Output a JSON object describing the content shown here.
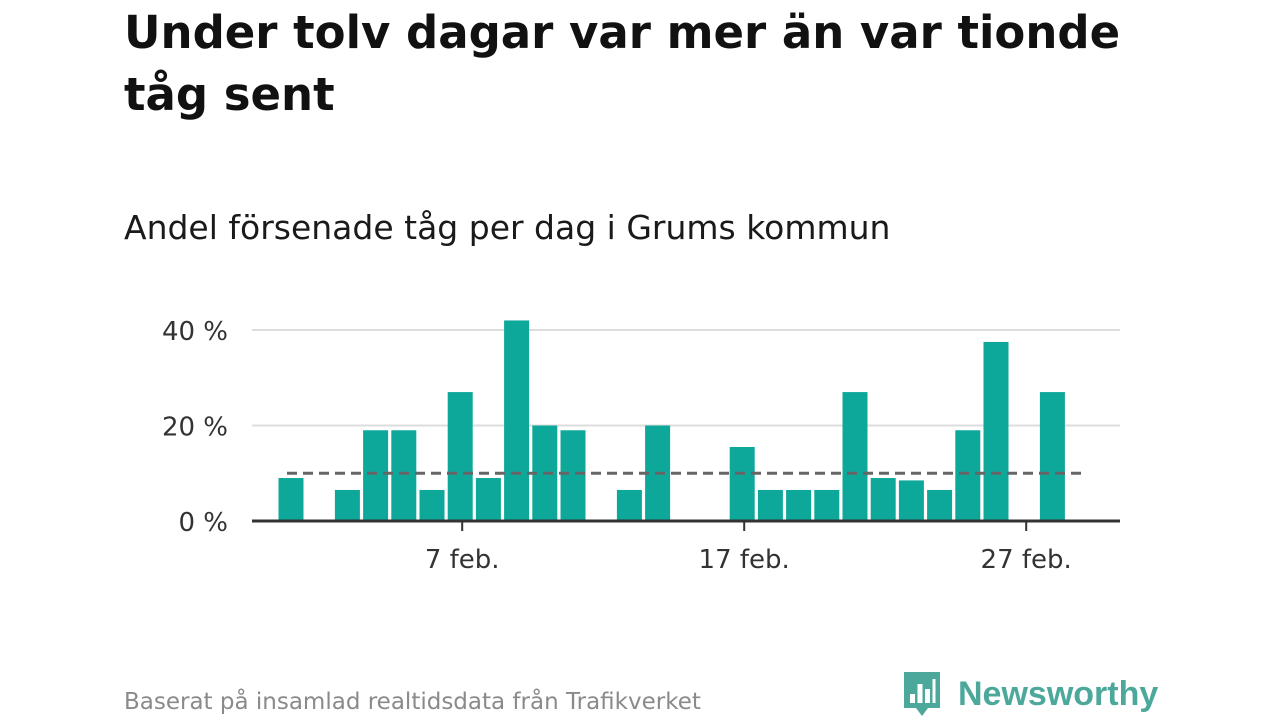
{
  "title": "Under tolv dagar var mer än var tionde tåg sent",
  "subtitle": "Andel försenade tåg per dag i Grums kommun",
  "footer": {
    "source": "Baserat på insamlad realtidsdata från Trafikverket",
    "brand": "Newsworthy"
  },
  "colors": {
    "bar": "#0ea89a",
    "reference_line": "#666666",
    "grid": "#dddddd",
    "axis": "#333333",
    "brand": "#4ba89b"
  },
  "chart_data": {
    "type": "bar",
    "x": [
      1,
      2,
      3,
      4,
      5,
      6,
      7,
      8,
      9,
      10,
      11,
      12,
      13,
      14,
      15,
      16,
      17,
      18,
      19,
      20,
      21,
      22,
      23,
      24,
      25,
      26,
      27,
      28,
      29
    ],
    "values": [
      9,
      0,
      6.5,
      19,
      19,
      6.5,
      27,
      9,
      42,
      20,
      19,
      0,
      6.5,
      20,
      0,
      0,
      15.5,
      6.5,
      6.5,
      6.5,
      27,
      9,
      8.5,
      6.5,
      19,
      37.5,
      0,
      27,
      0
    ],
    "x_ticks": [
      {
        "x": 7,
        "label": "7 feb."
      },
      {
        "x": 17,
        "label": "17 feb."
      },
      {
        "x": 27,
        "label": "27 feb."
      }
    ],
    "y_ticks": [
      {
        "y": 0,
        "label": "0 %"
      },
      {
        "y": 20,
        "label": "20 %"
      },
      {
        "y": 40,
        "label": "40 %"
      }
    ],
    "reference_line": 10,
    "xlim": [
      0.5,
      29.5
    ],
    "ylim": [
      0,
      40
    ],
    "xlabel": "",
    "ylabel": "",
    "grid": true,
    "unit": "%"
  }
}
